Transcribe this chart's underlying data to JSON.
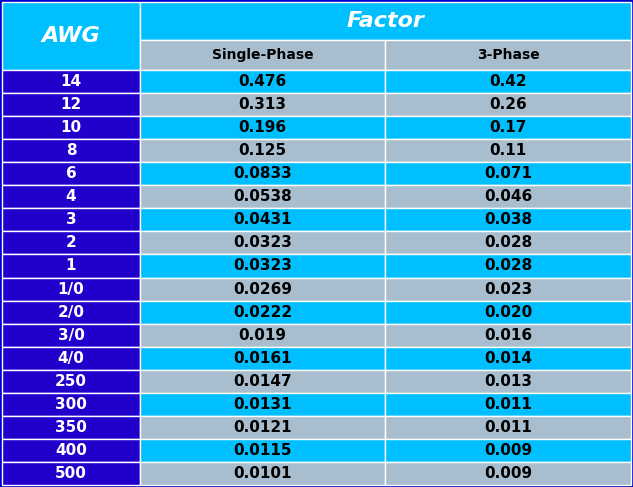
{
  "title": "Factor",
  "col_header_awg": "AWG",
  "col_header_single": "Single-Phase",
  "col_header_3phase": "3-Phase",
  "rows": [
    {
      "awg": "14",
      "single": "0.476",
      "three": "0.42"
    },
    {
      "awg": "12",
      "single": "0.313",
      "three": "0.26"
    },
    {
      "awg": "10",
      "single": "0.196",
      "three": "0.17"
    },
    {
      "awg": "8",
      "single": "0.125",
      "three": "0.11"
    },
    {
      "awg": "6",
      "single": "0.0833",
      "three": "0.071"
    },
    {
      "awg": "4",
      "single": "0.0538",
      "three": "0.046"
    },
    {
      "awg": "3",
      "single": "0.0431",
      "three": "0.038"
    },
    {
      "awg": "2",
      "single": "0.0323",
      "three": "0.028"
    },
    {
      "awg": "1",
      "single": "0.0323",
      "three": "0.028"
    },
    {
      "awg": "1/0",
      "single": "0.0269",
      "three": "0.023"
    },
    {
      "awg": "2/0",
      "single": "0.0222",
      "three": "0.020"
    },
    {
      "awg": "3/0",
      "single": "0.019",
      "three": "0.016"
    },
    {
      "awg": "4/0",
      "single": "0.0161",
      "three": "0.014"
    },
    {
      "awg": "250",
      "single": "0.0147",
      "three": "0.013"
    },
    {
      "awg": "300",
      "single": "0.0131",
      "three": "0.011"
    },
    {
      "awg": "350",
      "single": "0.0121",
      "three": "0.011"
    },
    {
      "awg": "400",
      "single": "0.0115",
      "three": "0.009"
    },
    {
      "awg": "500",
      "single": "0.0101",
      "three": "0.009"
    }
  ],
  "color_awg_header": "#00BFFF",
  "color_factor_header": "#00BFFF",
  "color_subheader": "#A8BECF",
  "color_awg_col": "#2200CC",
  "color_row_cyan": "#00BFFF",
  "color_row_gray": "#A8BECF",
  "color_white": "#FFFFFF",
  "color_black": "#000000",
  "bg_color": "#0000CC",
  "border_color": "#FFFFFF"
}
